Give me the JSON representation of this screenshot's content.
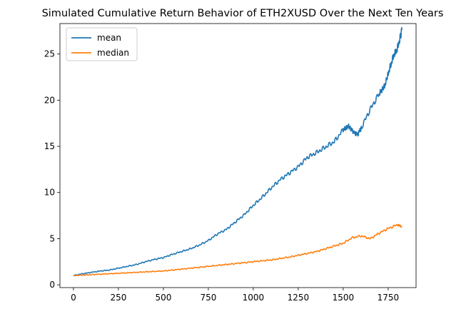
{
  "chart_data": {
    "type": "line",
    "title": "Simulated Cumulative Return Behavior of ETH2XUSD Over the Next Ten Years",
    "xlabel": "",
    "ylabel": "",
    "xlim": [
      -75,
      1905
    ],
    "ylim": [
      -0.3,
      28.3
    ],
    "xticks": [
      0,
      250,
      500,
      750,
      1000,
      1250,
      1500,
      1750
    ],
    "yticks": [
      0,
      5,
      10,
      15,
      20,
      25
    ],
    "grid": false,
    "legend": {
      "placement": "top-left",
      "entries": [
        "mean",
        "median"
      ]
    },
    "series": [
      {
        "name": "mean",
        "color": "#1f77b4",
        "x": [
          0,
          50,
          100,
          150,
          200,
          250,
          300,
          350,
          400,
          450,
          500,
          550,
          600,
          650,
          700,
          750,
          800,
          850,
          900,
          950,
          1000,
          1050,
          1100,
          1150,
          1200,
          1250,
          1300,
          1350,
          1400,
          1450,
          1500,
          1530,
          1560,
          1580,
          1600,
          1650,
          1700,
          1730,
          1760,
          1780,
          1800,
          1820,
          1826
        ],
        "y": [
          1.0,
          1.2,
          1.35,
          1.5,
          1.6,
          1.8,
          2.0,
          2.2,
          2.5,
          2.75,
          2.95,
          3.3,
          3.6,
          3.9,
          4.3,
          4.8,
          5.5,
          6.0,
          6.8,
          7.6,
          8.6,
          9.5,
          10.5,
          11.4,
          12.1,
          12.8,
          13.8,
          14.3,
          14.9,
          15.5,
          16.8,
          17.2,
          16.5,
          16.3,
          17.0,
          19.0,
          20.7,
          21.5,
          23.5,
          24.8,
          25.5,
          27.0,
          27.6
        ]
      },
      {
        "name": "median",
        "color": "#ff7f0e",
        "x": [
          0,
          50,
          100,
          150,
          200,
          250,
          300,
          350,
          400,
          450,
          500,
          550,
          600,
          650,
          700,
          750,
          800,
          850,
          900,
          950,
          1000,
          1050,
          1100,
          1150,
          1200,
          1250,
          1300,
          1350,
          1400,
          1450,
          1500,
          1550,
          1600,
          1650,
          1700,
          1750,
          1800,
          1826
        ],
        "y": [
          1.0,
          1.05,
          1.1,
          1.15,
          1.2,
          1.25,
          1.3,
          1.35,
          1.4,
          1.45,
          1.5,
          1.6,
          1.7,
          1.8,
          1.9,
          2.0,
          2.1,
          2.2,
          2.3,
          2.4,
          2.5,
          2.6,
          2.7,
          2.85,
          3.0,
          3.2,
          3.4,
          3.6,
          3.9,
          4.2,
          4.5,
          5.1,
          5.3,
          5.0,
          5.6,
          6.1,
          6.5,
          6.3
        ]
      }
    ]
  }
}
